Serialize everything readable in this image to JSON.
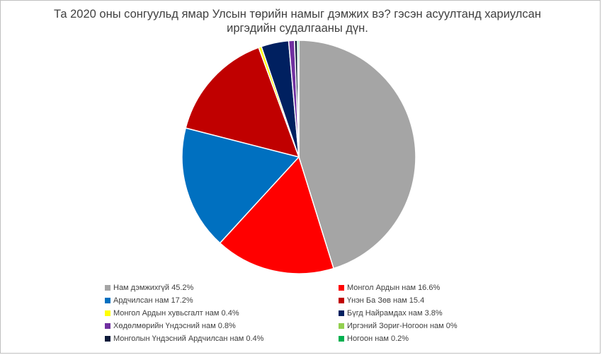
{
  "chart_data": {
    "type": "pie",
    "title": "Та 2020 оны сонгуульд ямар Улсын төрийн намыг дэмжих вэ? гэсэн асуултанд хариулсан иргэдийн судалгааны дүн.",
    "legend_position": "bottom",
    "slices": [
      {
        "label": "Нам дэмжихгүй 45.2%",
        "name": "Нам дэмжихгүй",
        "value": 45.2,
        "color": "#a5a5a5"
      },
      {
        "label": "Монгол Ардын нам 16.6%",
        "name": "Монгол Ардын нам",
        "value": 16.6,
        "color": "#ff0000"
      },
      {
        "label": "Ардчилсан нам 17.2%",
        "name": "Ардчилсан нам",
        "value": 17.2,
        "color": "#0070c0"
      },
      {
        "label": "Үнэн Ба Зөв нам 15.4",
        "name": "Үнэн Ба Зөв нам",
        "value": 15.4,
        "color": "#c00000"
      },
      {
        "label": "Монгол Ардын хувьсгалт нам 0.4%",
        "name": "Монгол Ардын хувьсгалт нам",
        "value": 0.4,
        "color": "#ffff00"
      },
      {
        "label": "Бүгд Найрамдах нам 3.8%",
        "name": "Бүгд Найрамдах нам",
        "value": 3.8,
        "color": "#002060"
      },
      {
        "label": "Хөдөлмөрийн Үндэсний нам 0.8%",
        "name": "Хөдөлмөрийн Үндэсний нам",
        "value": 0.8,
        "color": "#7030a0"
      },
      {
        "label": "Иргэний Зориг-Ногоон нам 0%",
        "name": "Иргэний Зориг-Ногоон нам",
        "value": 0,
        "color": "#92d050"
      },
      {
        "label": "Монголын Үндэсний Ардчилсан нам 0.4%",
        "name": "Монголын Үндэсний Ардчилсан нам",
        "value": 0.4,
        "color": "#0d1a3a"
      },
      {
        "label": "Ногоон нам 0.2%",
        "name": "Ногоон нам",
        "value": 0.2,
        "color": "#00b050"
      }
    ]
  }
}
